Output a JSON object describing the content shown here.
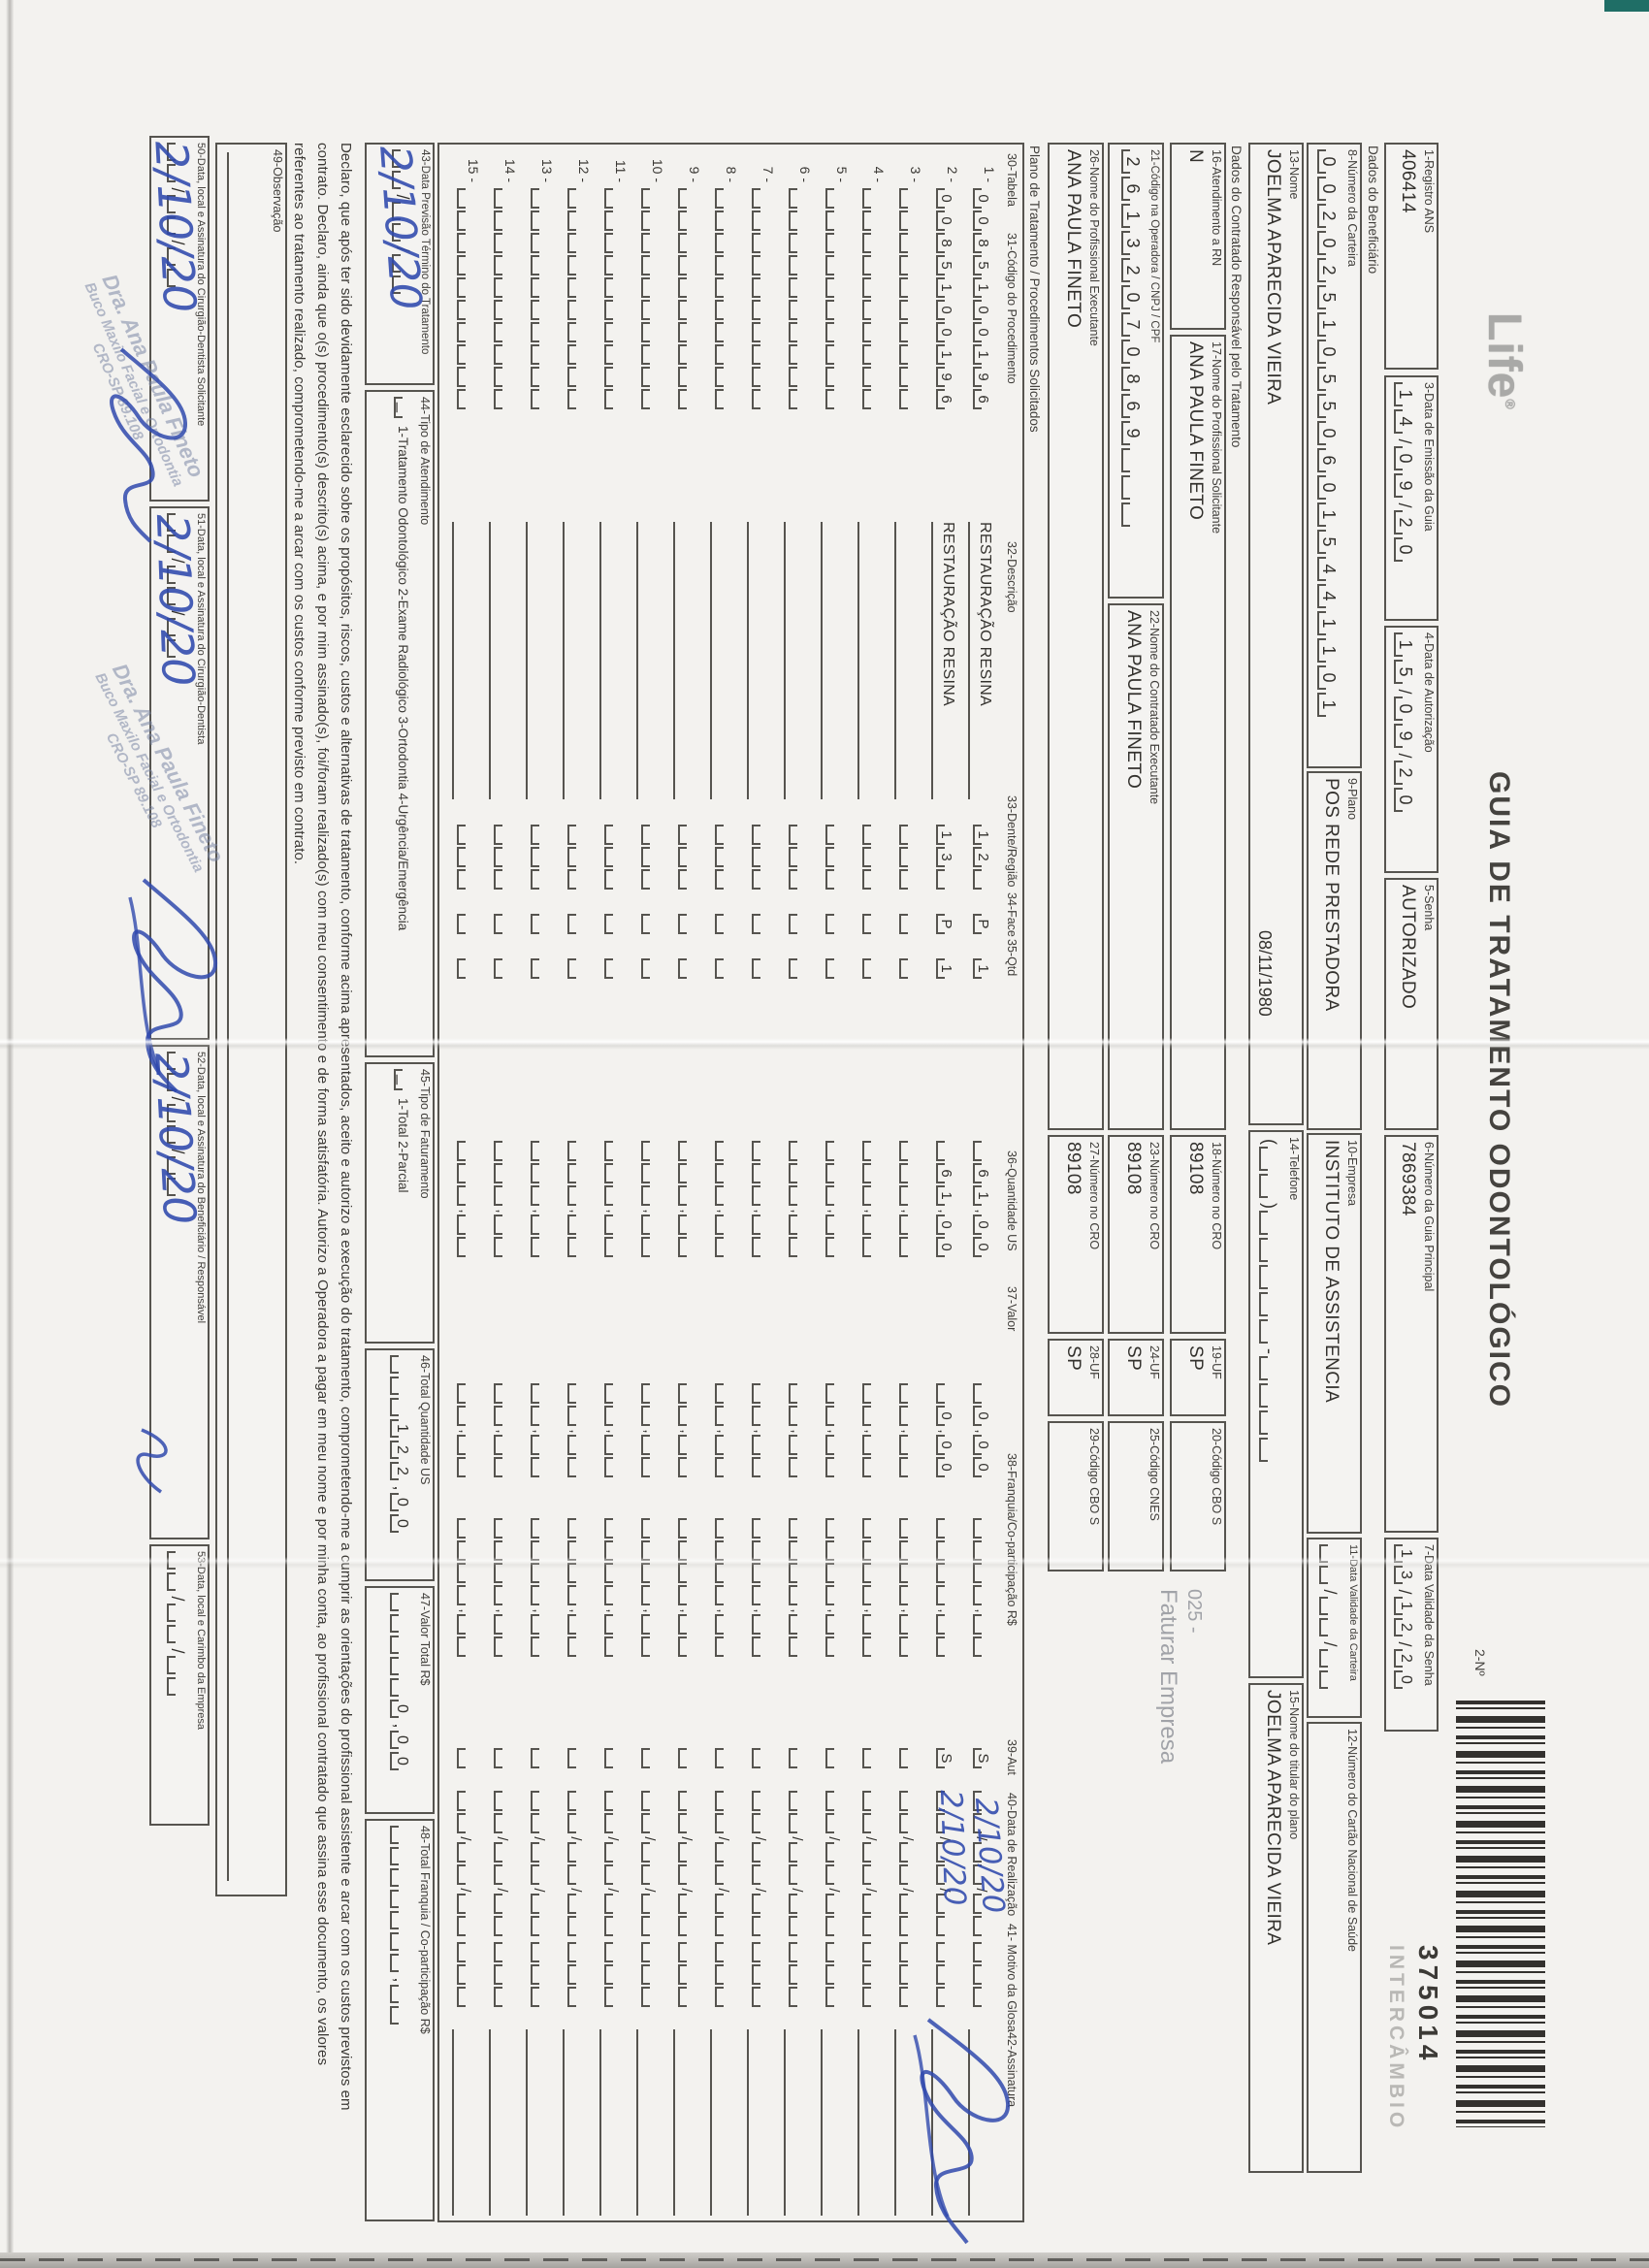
{
  "page": {
    "paper_color": "#f3f2ef",
    "ink_color": "#34322e",
    "handwriting_color": "#2f49ad",
    "stamp_color": "#7c87a6"
  },
  "header": {
    "logo": "Life",
    "logo_mark": "®",
    "title": "GUIA DE TRATAMENTO ODONTOLÓGICO",
    "number_label": "2-Nº",
    "barcode_number": "375014",
    "barcode_caption": "INTERCÂMBIO"
  },
  "sections": {
    "beneficiario": "Dados do Beneficiário",
    "contratado": "Dados do Contratado Responsável pelo Tratamento",
    "plano": "Plano de Tratamento / Procedimentos Solicitados"
  },
  "fields": {
    "f1": {
      "label": "1-Registro ANS",
      "value": "406414"
    },
    "f3": {
      "label": "3-Data de Emissão da Guia",
      "cells": "1|4|/|0|9|/|2|0"
    },
    "f4": {
      "label": "4-Data de Autorização",
      "cells": "1|5|/|0|9|/|2|0"
    },
    "f5": {
      "label": "5-Senha",
      "value": "AUTORIZADO"
    },
    "f6": {
      "label": "6-Número da Guia Principal",
      "value": "7869384"
    },
    "f7": {
      "label": "7-Data Validade da Senha",
      "cells": "1|3|/|1|2|/|2|0"
    },
    "f8": {
      "label": "8-Número da Carteira",
      "cells": "0|0|2|0|2|5|1|0|5|5|0|6|0|1|5|4|4|1|1|0|1"
    },
    "f9": {
      "label": "9-Plano",
      "value": "POS REDE PRESTADORA"
    },
    "f10": {
      "label": "10-Empresa",
      "value": "INSTITUTO DE ASSISTENCIA"
    },
    "f11": {
      "label": "11-Data Validade da Carteira",
      "cells": "_|_|/|_|_|/|_|_"
    },
    "f12": {
      "label": "12-Número do Cartão Nacional de Saúde",
      "value": ""
    },
    "f13": {
      "label": "13-Nome",
      "value": "JOELMA APARECIDA VIEIRA",
      "birth_date": "08/11/1980"
    },
    "f14": {
      "label": "14-Telefone",
      "cells": "(|_|_|)|_|_|_|_|_|-|_|_|_|_"
    },
    "f15": {
      "label": "15-Nome do titular do plano",
      "value": "JOELMA APARECIDA VIEIRA"
    },
    "f16": {
      "label": "16-Atendimento a RN",
      "value": "N"
    },
    "f17": {
      "label": "17-Nome do Profissional Solicitante",
      "value": "ANA PAULA FINETO"
    },
    "f18": {
      "label": "18-Número no CRO",
      "value": "89108"
    },
    "f19": {
      "label": "19-UF",
      "value": "SP"
    },
    "f20": {
      "label": "20-Código CBO S",
      "value": ""
    },
    "f21": {
      "label": "21-Código na Operadora / CNPJ / CPF",
      "cells": "2|6|1|3|2|0|7|0|8|6|9|_|_|_"
    },
    "f22": {
      "label": "22-Nome do Contratado Executante",
      "value": "ANA PAULA FINETO"
    },
    "f23": {
      "label": "23-Número no CRO",
      "value": "89108"
    },
    "f24": {
      "label": "24-UF",
      "value": "SP"
    },
    "f25": {
      "label": "25-Código CNES",
      "value": ""
    },
    "f26": {
      "label": "26-Nome do Profissional Executante",
      "value": "ANA PAULA FINETO"
    },
    "f27": {
      "label": "27-Número no CRO",
      "value": "89108"
    },
    "f28": {
      "label": "28-UF",
      "value": "SP"
    },
    "f29": {
      "label": "29-Código CBO S",
      "value": ""
    },
    "f43": {
      "label": "43-Data Previsão Término do Tratamento",
      "cells": "_|_|/|_|_|/|_|_"
    },
    "f44": {
      "label": "44-Tipo de Atendimento",
      "checkbox": "_",
      "options": "1-Tratamento Odontológico  2-Exame Radiológico  3-Ortodontia  4-Urgência/Emergência"
    },
    "f45": {
      "label": "45-Tipo de Faturamento",
      "checkbox": "_",
      "options": "1-Total  2-Parcial"
    },
    "f46": {
      "label": "46-Total Quantidade US",
      "cells": "_|_|_|1|2|2|,|0|0"
    },
    "f47": {
      "label": "47-Valor Total R$",
      "cells": "_|_|_|_|_|0|,|0|0"
    },
    "f48": {
      "label": "48-Total Franquia / Co-participação R$",
      "cells": "_|_|_|_|_|_|_|,|_|_"
    },
    "f49": {
      "label": "49-Observação"
    },
    "f50": {
      "label": "50-Data, local e Assinatura do Cirurgião-Dentista Solicitante",
      "cells": "_|_|/|_|_|/|_|_"
    },
    "f51": {
      "label": "51-Data, local e Assinatura do Cirurgião-Dentista",
      "cells": "_|_|/|_|_|/|_|_"
    },
    "f52": {
      "label": "52-Data, local e Assinatura do Beneficiário / Responsável",
      "cells": "_|_|/|_|_|/|_|_"
    },
    "f53": {
      "label": "53-Data, local e Carimbo da Empresa",
      "cells": "_|_|/|_|_|/|_|_"
    }
  },
  "gray_stamp": {
    "code": "025 -",
    "text": "Faturar Empresa"
  },
  "table": {
    "headers": {
      "h30": "30-Tabela",
      "h31": "31-Código do Procedimento",
      "h32": "32-Descrição",
      "h33": "33-Dente/Região",
      "h34": "34-Face",
      "h35": "35-Qtd",
      "h36": "36-Quantidade US",
      "h37": "37-Valor",
      "h38": "38-Franquia/Co-participação R$",
      "h39": "39-Aut",
      "h40": "40-Data de Realização",
      "h41": "41- Motivo da Glosa",
      "h42": "42-Assinatura"
    },
    "rows": [
      {
        "n": "1 -",
        "codigo": "0|0|8|5|1|0|0|1|9|6",
        "desc": "RESTAURAÇÃO RESINA",
        "dente": "1|2|_",
        "face": "P",
        "qtd": "1",
        "qus": "_|6|1|,|0|0",
        "valor": "_|0|,|0|0",
        "franquia": "_|_|_|_|,|_|_",
        "aut": "S",
        "data": "_|_|/|_|_|/|_|_",
        "motivo": "_|_|_",
        "hand": "2/10/20"
      },
      {
        "n": "2 -",
        "codigo": "0|0|8|5|1|0|0|1|9|6",
        "desc": "RESTAURAÇÃO RESINA",
        "dente": "1|3|_",
        "face": "P",
        "qtd": "1",
        "qus": "_|6|1|,|0|0",
        "valor": "_|0|,|0|0",
        "franquia": "_|_|_|_|,|_|_",
        "aut": "S",
        "data": "_|_|/|_|_|/|_|_",
        "motivo": "_|_|_",
        "hand": "2/10/20"
      }
    ],
    "empty_row": {
      "codigo": "_|_|_|_|_|_|_|_|_|_",
      "desc": "",
      "dente": "_|_|_",
      "face": "_",
      "qtd": "_",
      "qus": "_|_|_|,|_|_",
      "valor": "_|_|,|_|_",
      "franquia": "_|_|_|_|,|_|_",
      "aut": "_",
      "data": "_|_|/|_|_|/|_|_",
      "motivo": "_|_|_",
      "hand": ""
    },
    "row_count": 15
  },
  "declaration": {
    "lines": [
      "Declaro, que após ter sido devidamente esclarecido sobre os propósitos, riscos, custos e alternativas de tratamento, conforme acima apresentados, aceito e autorizo a execução do tratamento, comprometendo-me a cumprir as orientações do profissional assistente e arcar com os custos previstos em",
      "contrato. Declaro, ainda que o(s) procedimento(s) descrito(s) acima, e por mim assinado(s), foi/foram realizado(s) com meu consentimento e de forma satisfatória. Autorizo a Operadora a pagar em meu nome e por minha conta, ao profissional contratado que assina esse documento, os valores",
      "referentes ao tratamento realizado, comprometendo-me a arcar com os custos conforme previsto em contrato."
    ]
  },
  "dentist_stamp": {
    "line1": "Dra. Ana Paula Fineto",
    "line2": "Buco Maxilo Facial e Ortodontia",
    "line3": "CRO-SP 89.108"
  },
  "handwriting": {
    "hw43": "2/10/20",
    "hw50": "2/10/20",
    "hw51": "2/10/20",
    "hw52": "2/10/20",
    "hw_row1": "2/10/20",
    "hw_row2": "2/10/20"
  }
}
